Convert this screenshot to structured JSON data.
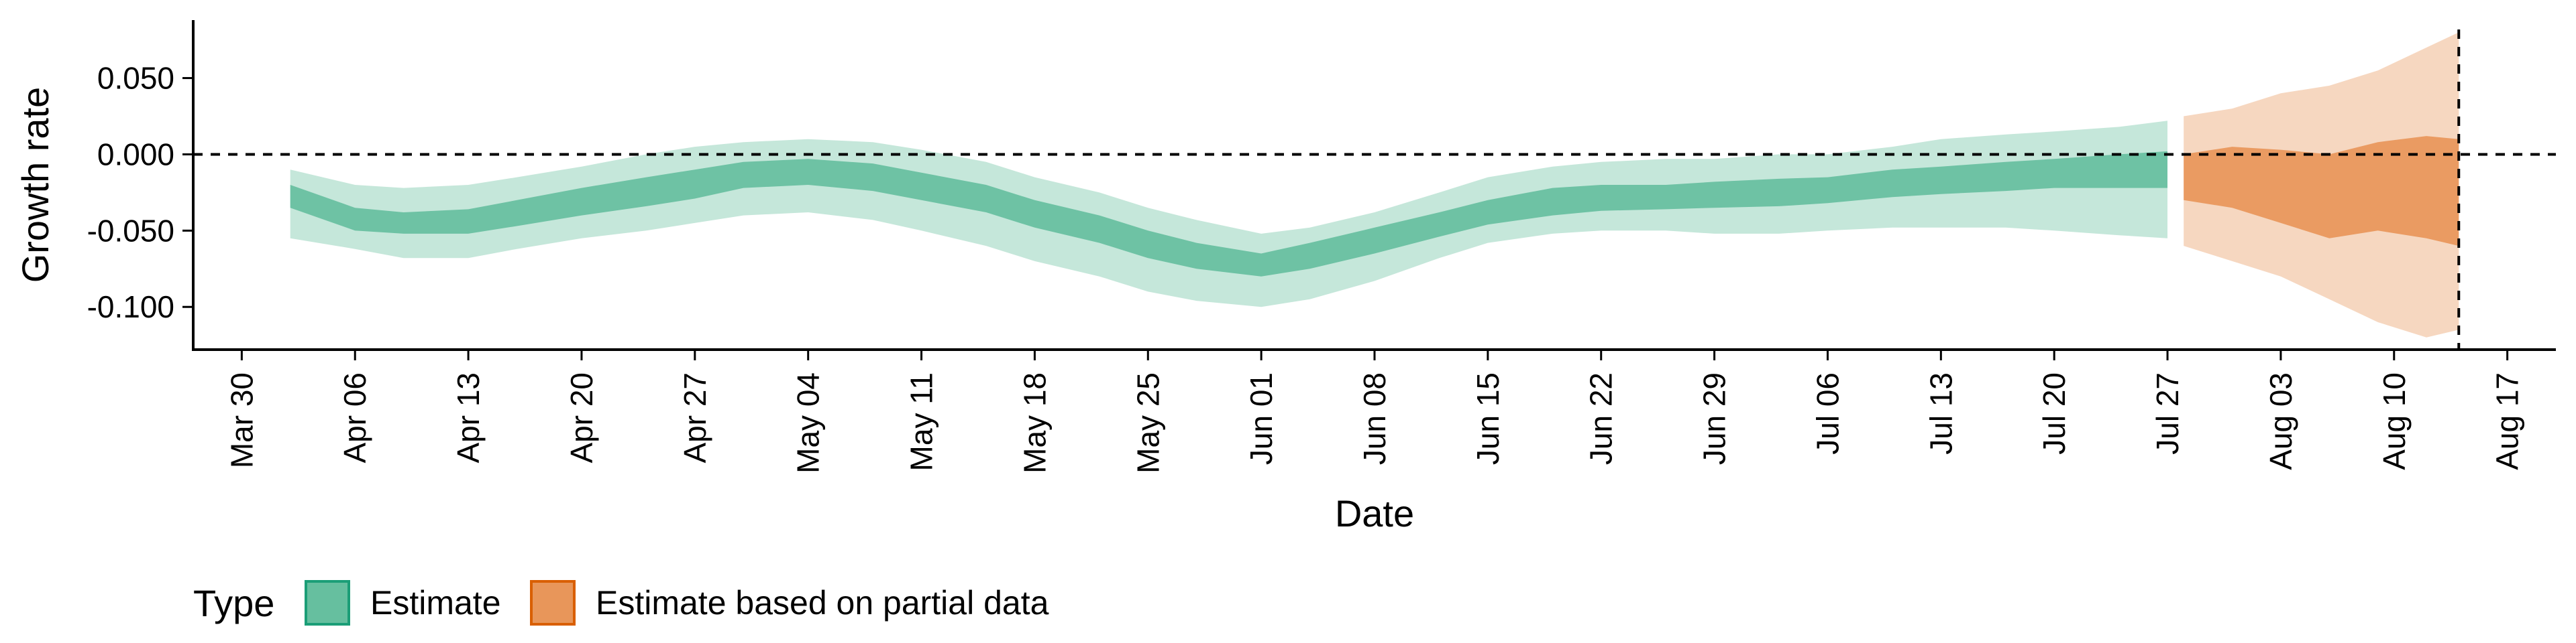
{
  "chart_data": {
    "type": "area",
    "xlabel": "Date",
    "ylabel": "Growth rate",
    "x_type": "date",
    "xlim": [
      "2020-03-27",
      "2020-08-20"
    ],
    "ylim": [
      -0.128,
      0.088
    ],
    "x_ticks": [
      "2020-03-30",
      "2020-04-06",
      "2020-04-13",
      "2020-04-20",
      "2020-04-27",
      "2020-05-04",
      "2020-05-11",
      "2020-05-18",
      "2020-05-25",
      "2020-06-01",
      "2020-06-08",
      "2020-06-15",
      "2020-06-22",
      "2020-06-29",
      "2020-07-06",
      "2020-07-13",
      "2020-07-20",
      "2020-07-27",
      "2020-08-03",
      "2020-08-10",
      "2020-08-17"
    ],
    "x_tick_labels": [
      "Mar 30",
      "Apr 06",
      "Apr 13",
      "Apr 20",
      "Apr 27",
      "May 04",
      "May 11",
      "May 18",
      "May 25",
      "Jun 01",
      "Jun 08",
      "Jun 15",
      "Jun 22",
      "Jun 29",
      "Jul 06",
      "Jul 13",
      "Jul 20",
      "Jul 27",
      "Aug 03",
      "Aug 10",
      "Aug 17"
    ],
    "y_ticks": [
      0.05,
      0.0,
      -0.05,
      -0.1
    ],
    "y_tick_labels": [
      "0.050",
      "0.000",
      "-0.050",
      "-0.100"
    ],
    "grid": false,
    "reference_lines": [
      {
        "axis": "y",
        "value": 0,
        "style": "dashed"
      },
      {
        "axis": "x",
        "value": "2020-08-14",
        "style": "dashed"
      }
    ],
    "legend": {
      "title": "Type",
      "placement": "bottom-left",
      "entries": [
        {
          "label": "Estimate",
          "fill": "#66bf9f",
          "stroke": "#1b9e77"
        },
        {
          "label": "Estimate based on partial data",
          "fill": "#e8965a",
          "stroke": "#d95f02"
        }
      ]
    },
    "series": [
      {
        "legend_entry": "Estimate",
        "color": "#66bf9f",
        "x": [
          "2020-04-02",
          "2020-04-06",
          "2020-04-09",
          "2020-04-13",
          "2020-04-16",
          "2020-04-20",
          "2020-04-24",
          "2020-04-27",
          "2020-04-30",
          "2020-05-04",
          "2020-05-08",
          "2020-05-11",
          "2020-05-15",
          "2020-05-18",
          "2020-05-22",
          "2020-05-25",
          "2020-05-28",
          "2020-06-01",
          "2020-06-04",
          "2020-06-08",
          "2020-06-12",
          "2020-06-15",
          "2020-06-19",
          "2020-06-22",
          "2020-06-26",
          "2020-06-29",
          "2020-07-03",
          "2020-07-06",
          "2020-07-10",
          "2020-07-13",
          "2020-07-17",
          "2020-07-20",
          "2020-07-24",
          "2020-07-27"
        ],
        "outer_upper": [
          -0.01,
          -0.02,
          -0.022,
          -0.02,
          -0.015,
          -0.008,
          0.0,
          0.005,
          0.008,
          0.01,
          0.008,
          0.003,
          -0.005,
          -0.015,
          -0.025,
          -0.035,
          -0.043,
          -0.052,
          -0.048,
          -0.038,
          -0.025,
          -0.015,
          -0.008,
          -0.005,
          -0.003,
          -0.003,
          0.0,
          0.0,
          0.005,
          0.01,
          0.013,
          0.015,
          0.018,
          0.022
        ],
        "inner_upper": [
          -0.02,
          -0.035,
          -0.038,
          -0.036,
          -0.03,
          -0.022,
          -0.015,
          -0.01,
          -0.005,
          -0.003,
          -0.006,
          -0.012,
          -0.02,
          -0.03,
          -0.04,
          -0.05,
          -0.058,
          -0.065,
          -0.058,
          -0.048,
          -0.038,
          -0.03,
          -0.022,
          -0.02,
          -0.02,
          -0.018,
          -0.016,
          -0.015,
          -0.01,
          -0.008,
          -0.005,
          -0.003,
          0.0,
          0.002
        ],
        "inner_lower": [
          -0.035,
          -0.05,
          -0.052,
          -0.052,
          -0.047,
          -0.04,
          -0.034,
          -0.029,
          -0.022,
          -0.02,
          -0.024,
          -0.03,
          -0.038,
          -0.048,
          -0.058,
          -0.068,
          -0.075,
          -0.08,
          -0.075,
          -0.065,
          -0.054,
          -0.046,
          -0.04,
          -0.037,
          -0.036,
          -0.035,
          -0.034,
          -0.032,
          -0.028,
          -0.026,
          -0.024,
          -0.022,
          -0.022,
          -0.022
        ],
        "outer_lower": [
          -0.055,
          -0.062,
          -0.068,
          -0.068,
          -0.062,
          -0.055,
          -0.05,
          -0.045,
          -0.04,
          -0.038,
          -0.043,
          -0.05,
          -0.06,
          -0.07,
          -0.08,
          -0.09,
          -0.096,
          -0.1,
          -0.095,
          -0.083,
          -0.068,
          -0.058,
          -0.052,
          -0.05,
          -0.05,
          -0.052,
          -0.052,
          -0.05,
          -0.048,
          -0.048,
          -0.048,
          -0.05,
          -0.053,
          -0.055
        ]
      },
      {
        "legend_entry": "Estimate based on partial data",
        "color": "#e8965a",
        "x": [
          "2020-07-28",
          "2020-07-31",
          "2020-08-03",
          "2020-08-06",
          "2020-08-09",
          "2020-08-12",
          "2020-08-14"
        ],
        "outer_upper": [
          0.025,
          0.03,
          0.04,
          0.045,
          0.055,
          0.07,
          0.08
        ],
        "inner_upper": [
          0.0,
          0.005,
          0.003,
          0.0,
          0.008,
          0.012,
          0.01
        ],
        "inner_lower": [
          -0.03,
          -0.035,
          -0.045,
          -0.055,
          -0.05,
          -0.055,
          -0.06
        ],
        "outer_lower": [
          -0.06,
          -0.07,
          -0.08,
          -0.095,
          -0.11,
          -0.12,
          -0.115
        ]
      }
    ]
  }
}
